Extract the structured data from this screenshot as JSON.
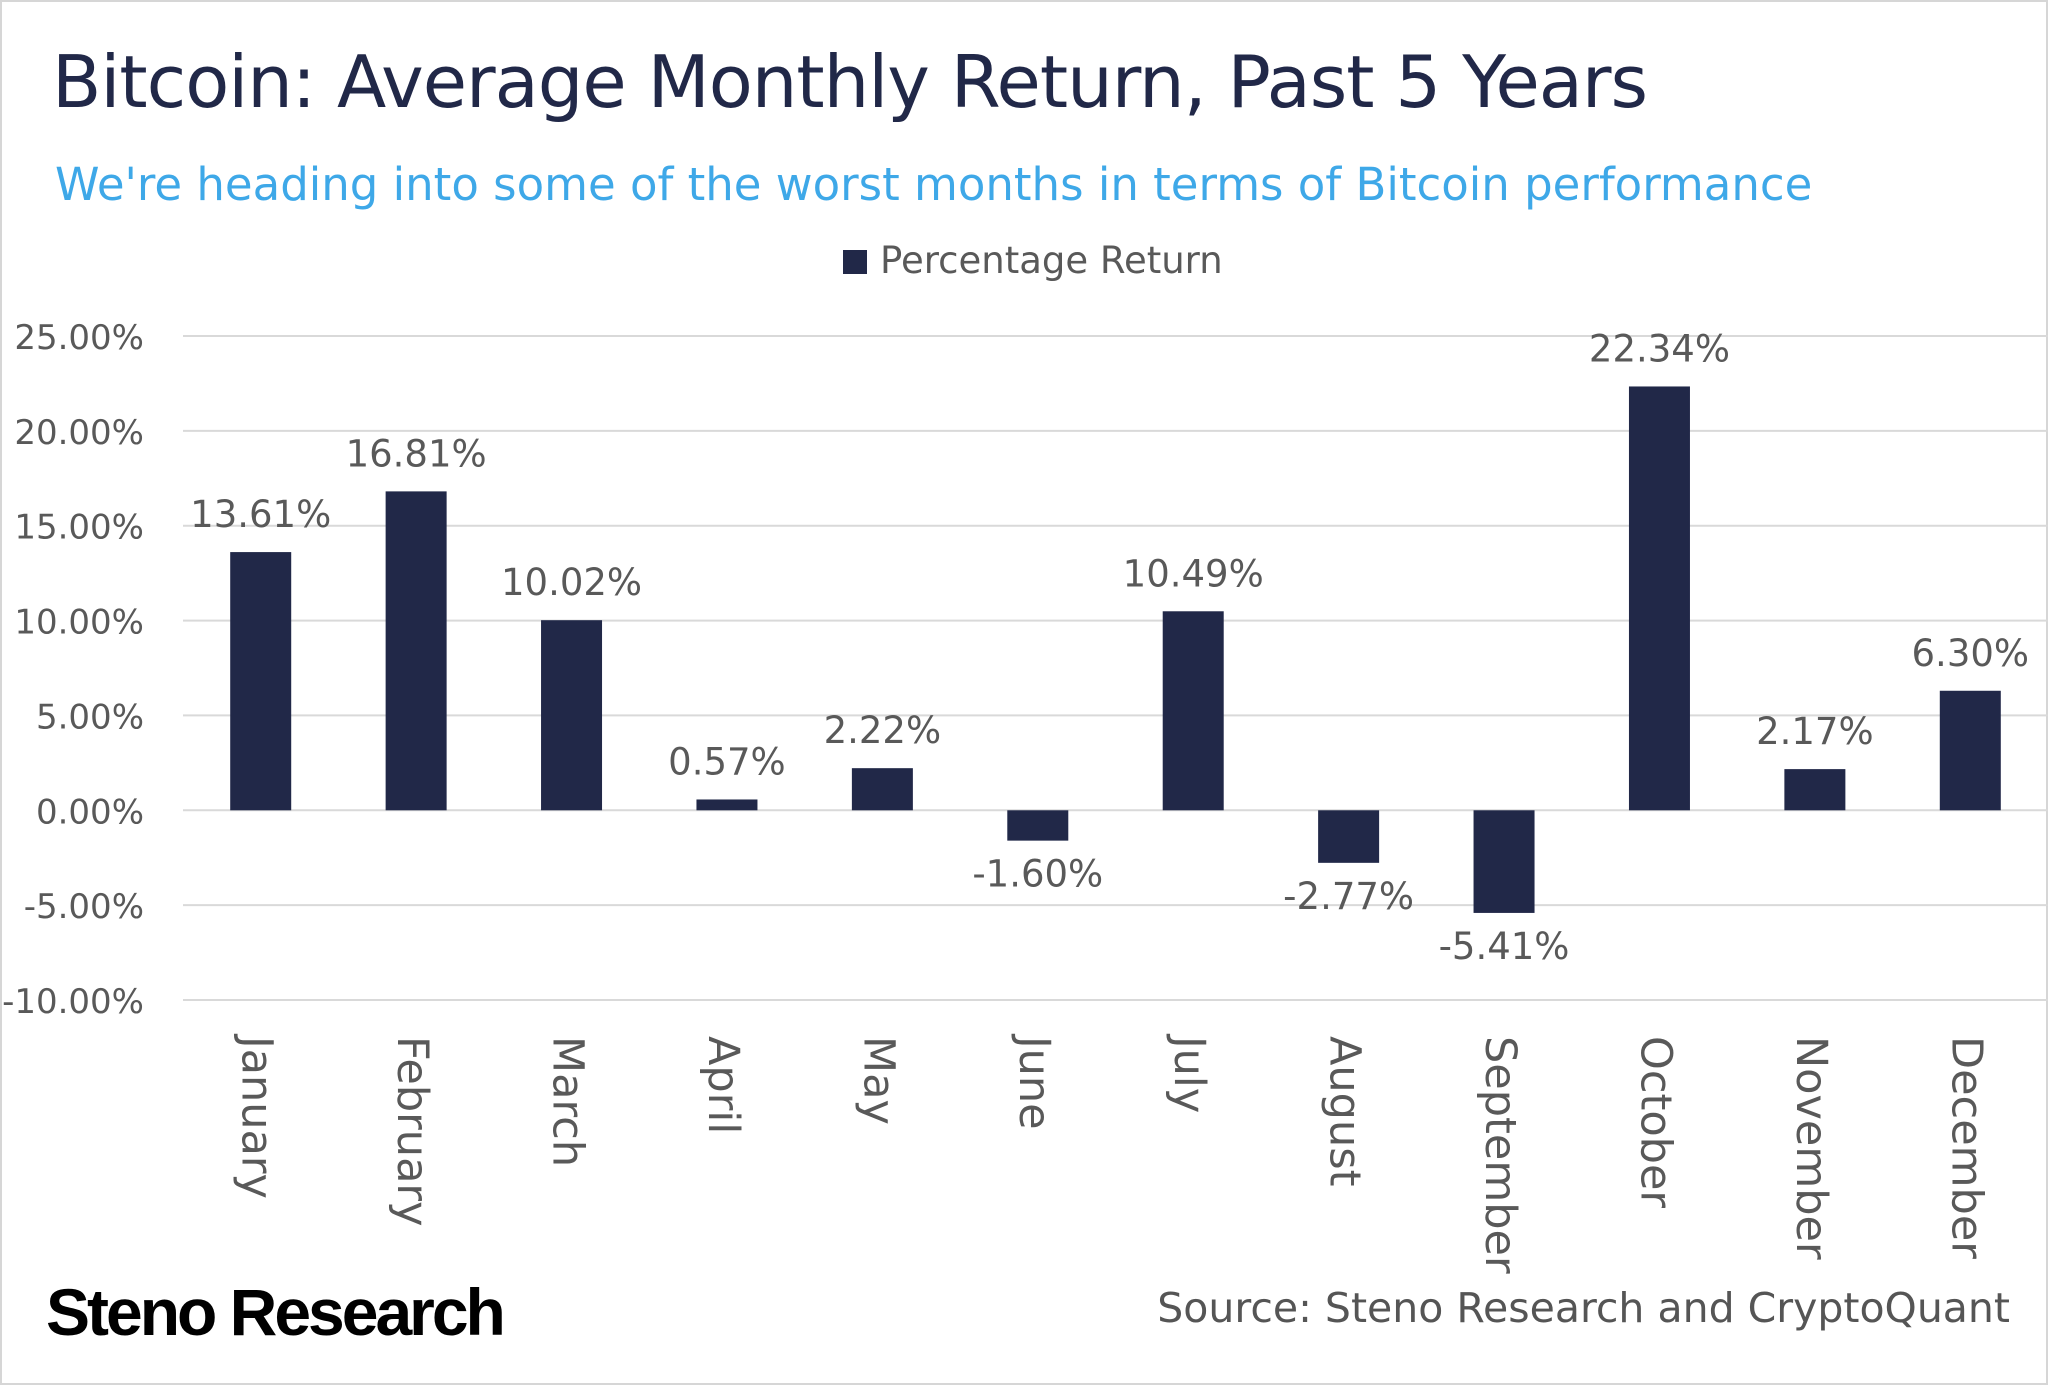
{
  "chart_data": {
    "type": "bar",
    "title": "Bitcoin: Average Monthly Return, Past 5 Years",
    "subtitle": "We're heading into some of the worst months in terms of Bitcoin performance",
    "categories": [
      "January",
      "February",
      "March",
      "April",
      "May",
      "June",
      "July",
      "August",
      "September",
      "October",
      "November",
      "December"
    ],
    "series": [
      {
        "name": "Percentage Return",
        "values": [
          13.61,
          16.81,
          10.02,
          0.57,
          2.22,
          -1.6,
          10.49,
          -2.77,
          -5.41,
          22.34,
          2.17,
          6.3
        ],
        "labels": [
          "13.61%",
          "16.81%",
          "10.02%",
          "0.57%",
          "2.22%",
          "-1.60%",
          "10.49%",
          "-2.77%",
          "-5.41%",
          "22.34%",
          "2.17%",
          "6.30%"
        ]
      }
    ],
    "yticks": [
      25,
      20,
      15,
      10,
      5,
      0,
      -5,
      -10
    ],
    "ytick_labels": [
      "25.00%",
      "20.00%",
      "15.00%",
      "10.00%",
      "5.00%",
      "0.00%",
      "-5.00%",
      "-10.00%"
    ],
    "ylim": [
      -10,
      25
    ],
    "grid": true,
    "legend": "top-center",
    "xlabel": "",
    "ylabel": "",
    "bar_color": "#212848",
    "grid_color": "#d9d9d9"
  },
  "branding": {
    "logo_text": "Steno Research",
    "source": "Source: Steno Research and CryptoQuant"
  }
}
